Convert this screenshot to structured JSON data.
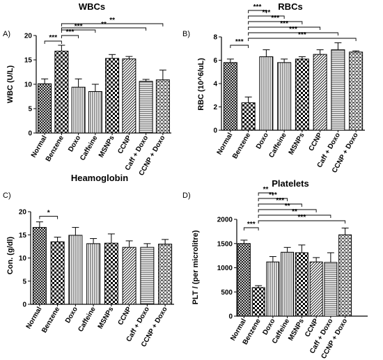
{
  "chart_data": [
    {
      "panel_label": "A)",
      "type": "bar",
      "title": "WBCs",
      "ylabel": "WBC (U/L)",
      "xlabel": "",
      "categories": [
        "Normal",
        "Benzene",
        "Doxo",
        "Caffeine",
        "MSNPs",
        "CCNP",
        "Caff + Doxo",
        "CCNP + Doxo"
      ],
      "values": [
        10.1,
        16.8,
        9.4,
        8.5,
        15.3,
        15.2,
        10.6,
        10.9
      ],
      "errors": [
        1.0,
        1.2,
        1.7,
        1.5,
        0.8,
        0.5,
        0.4,
        2.0
      ],
      "patterns": [
        "crosshatch",
        "check",
        "vlines",
        "vlines",
        "check",
        "dhatch",
        "hlines",
        "crossdiag"
      ],
      "ylim": [
        0,
        20
      ],
      "yticks": [
        0,
        5,
        10,
        15,
        20
      ],
      "significance": [
        {
          "from": "Normal",
          "to": "Benzene",
          "label": "***"
        },
        {
          "from": "Benzene",
          "to": "Doxo",
          "label": "***"
        },
        {
          "from": "Benzene",
          "to": "Caffeine",
          "label": "***"
        },
        {
          "from": "Benzene",
          "to": "Caff + Doxo",
          "label": "**"
        },
        {
          "from": "Benzene",
          "to": "CCNP + Doxo",
          "label": "**"
        }
      ]
    },
    {
      "panel_label": "B)",
      "type": "bar",
      "title": "RBCs",
      "ylabel": "RBC (10^6/uL)",
      "xlabel": "",
      "categories": [
        "Normal",
        "Benzene",
        "Doxo",
        "Caffeine",
        "MSNPs",
        "CCNP",
        "Caff + Doxo",
        "CCNP + Doxo"
      ],
      "values": [
        5.8,
        2.35,
        6.3,
        5.8,
        6.1,
        6.5,
        6.9,
        6.7
      ],
      "errors": [
        0.3,
        0.5,
        0.6,
        0.3,
        0.2,
        0.4,
        0.6,
        0.1
      ],
      "patterns": [
        "crosshatch",
        "check",
        "vlines",
        "vlines",
        "check",
        "dhatch",
        "hlines",
        "crossdiag"
      ],
      "ylim": [
        0,
        8
      ],
      "yticks": [
        0,
        2,
        4,
        6,
        8
      ],
      "significance": [
        {
          "from": "Normal",
          "to": "Benzene",
          "label": "***"
        },
        {
          "from": "Benzene",
          "to": "Doxo",
          "label": "***"
        },
        {
          "from": "Benzene",
          "to": "Caffeine",
          "label": "***"
        },
        {
          "from": "Benzene",
          "to": "MSNPs",
          "label": "***"
        },
        {
          "from": "Benzene",
          "to": "CCNP",
          "label": "***"
        },
        {
          "from": "Benzene",
          "to": "Caff + Doxo",
          "label": "***"
        },
        {
          "from": "Benzene",
          "to": "CCNP + Doxo",
          "label": "***"
        }
      ]
    },
    {
      "panel_label": "C)",
      "type": "bar",
      "title": "Heamoglobin",
      "ylabel": "Con. (g/dl)",
      "xlabel": "",
      "categories": [
        "Normal",
        "Benzene",
        "Doxo",
        "Caffeine",
        "MSNPs",
        "CCNP",
        "Caff + Doxo",
        "CCNP + Doxo"
      ],
      "values": [
        16.6,
        13.5,
        14.9,
        13.1,
        13.2,
        12.3,
        12.3,
        13.0
      ],
      "errors": [
        1.2,
        1.0,
        1.7,
        1.1,
        2.0,
        1.4,
        0.8,
        1.0
      ],
      "patterns": [
        "crosshatch",
        "check",
        "vlines",
        "vlines",
        "check",
        "dhatch",
        "hlines",
        "crossdiag"
      ],
      "ylim": [
        0,
        20
      ],
      "yticks": [
        0,
        5,
        10,
        15,
        20
      ],
      "significance": [
        {
          "from": "Normal",
          "to": "Benzene",
          "label": "*"
        }
      ]
    },
    {
      "panel_label": "D)",
      "type": "bar",
      "title": "Platelets",
      "ylabel": "PLT / (per microlitre)",
      "xlabel": "",
      "categories": [
        "Normal",
        "Benzene",
        "Doxo",
        "Caffeine",
        "MSNPs",
        "CCNP",
        "Caff + Doxo",
        "CCNP + Doxo"
      ],
      "values": [
        1500,
        590,
        1120,
        1320,
        1310,
        1120,
        1110,
        1680
      ],
      "errors": [
        70,
        40,
        110,
        100,
        160,
        90,
        200,
        140
      ],
      "patterns": [
        "crosshatch",
        "check",
        "vlines",
        "vlines",
        "check",
        "dhatch",
        "hlines",
        "crossdiag"
      ],
      "ylim": [
        0,
        2000
      ],
      "yticks": [
        0,
        500,
        1000,
        1500,
        2000
      ],
      "significance": [
        {
          "from": "Normal",
          "to": "Benzene",
          "label": "***"
        },
        {
          "from": "Benzene",
          "to": "Doxo",
          "label": "**"
        },
        {
          "from": "Benzene",
          "to": "Caffeine",
          "label": "***"
        },
        {
          "from": "Benzene",
          "to": "MSNPs",
          "label": "***"
        },
        {
          "from": "Benzene",
          "to": "CCNP",
          "label": "**"
        },
        {
          "from": "Benzene",
          "to": "Caff + Doxo",
          "label": "**"
        },
        {
          "from": "Benzene",
          "to": "CCNP + Doxo",
          "label": "***"
        }
      ]
    }
  ]
}
